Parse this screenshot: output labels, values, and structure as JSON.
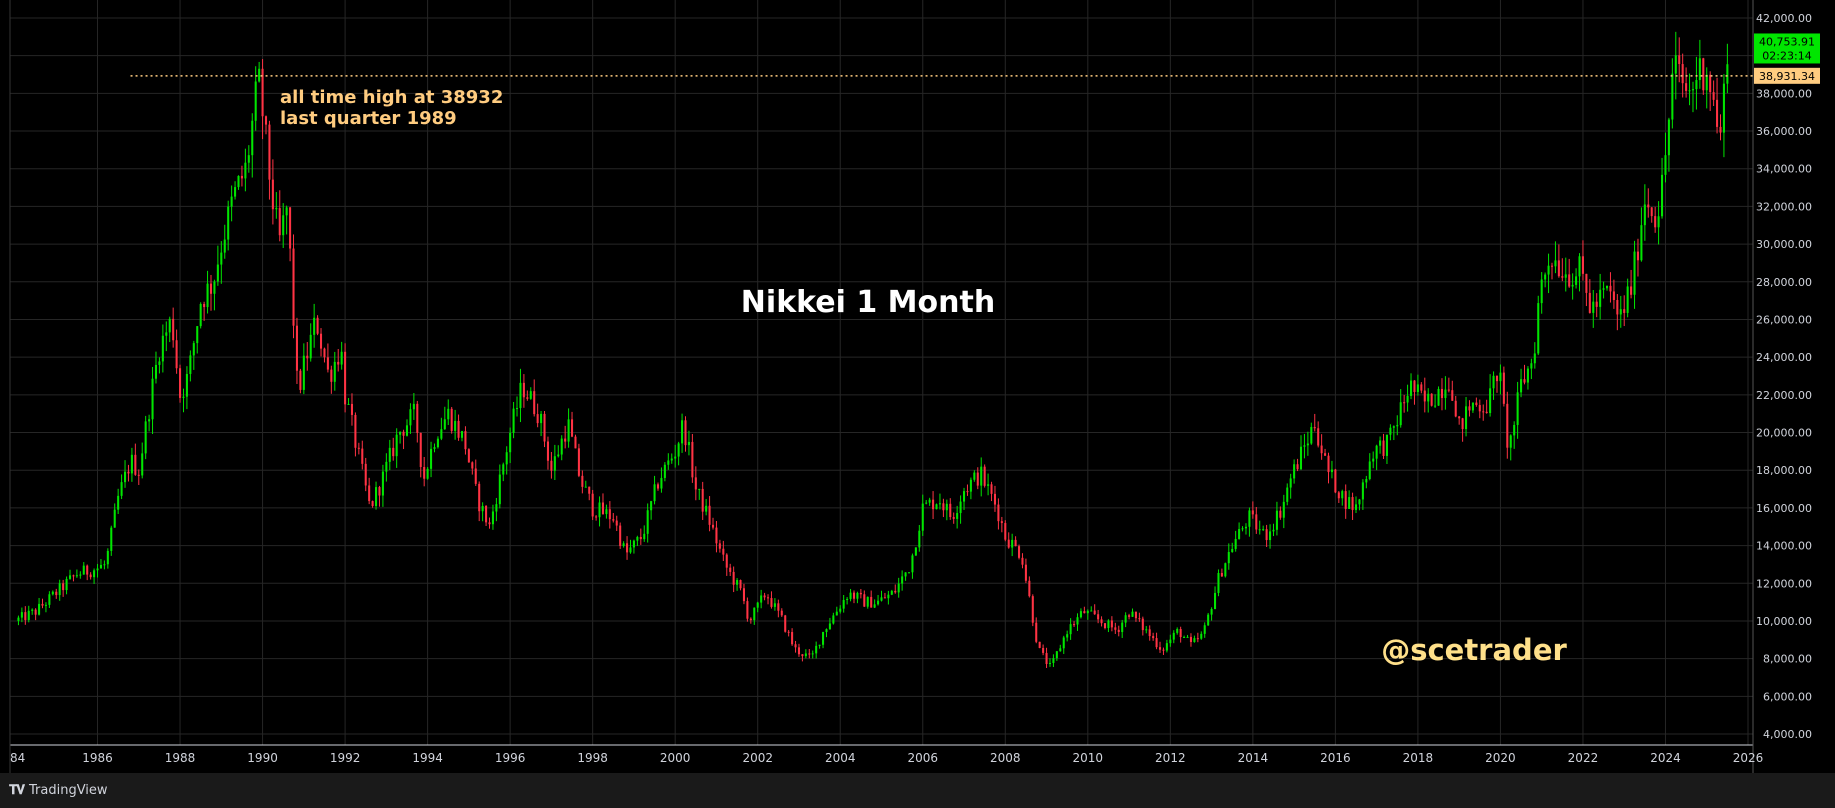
{
  "chart_data": {
    "type": "candlestick",
    "title": "Nikkei 1 Month",
    "watermark": "@scetrader",
    "annotation": [
      "all time high at 38932",
      "last quarter 1989"
    ],
    "x_range": [
      1984,
      2026
    ],
    "x_ticks": [
      "84",
      "1986",
      "1988",
      "1990",
      "1992",
      "1994",
      "1996",
      "1998",
      "2000",
      "2002",
      "2004",
      "2006",
      "2008",
      "2010",
      "2012",
      "2014",
      "2016",
      "2018",
      "2020",
      "2022",
      "2024",
      "2026"
    ],
    "y_range": [
      4000,
      42000
    ],
    "y_ticks": [
      "42,000.00",
      "40,000.00",
      "38,000.00",
      "36,000.00",
      "34,000.00",
      "32,000.00",
      "30,000.00",
      "28,000.00",
      "26,000.00",
      "24,000.00",
      "22,000.00",
      "20,000.00",
      "18,000.00",
      "16,000.00",
      "14,000.00",
      "12,000.00",
      "10,000.00",
      "8,000.00",
      "6,000.00",
      "4,000.00"
    ],
    "reference_line": {
      "value": 38931.34,
      "label": "38,931.34",
      "style": "dotted",
      "color": "#ffcc80"
    },
    "last_price": {
      "value": 40753.91,
      "label": "40,753.91",
      "countdown": "02:23:14",
      "color": "#00e600"
    },
    "grid": true,
    "colors": {
      "up": "#00e600",
      "down": "#ff3344",
      "text": "#d1d4dc",
      "annotation": "#ffcc80",
      "background": "#000000"
    },
    "series_path": [
      [
        1984.0,
        10000
      ],
      [
        1984.5,
        10500
      ],
      [
        1985.0,
        11500
      ],
      [
        1985.5,
        12500
      ],
      [
        1986.0,
        12800
      ],
      [
        1986.2,
        13000
      ],
      [
        1986.5,
        16500
      ],
      [
        1986.8,
        18500
      ],
      [
        1987.0,
        18000
      ],
      [
        1987.3,
        22000
      ],
      [
        1987.5,
        24500
      ],
      [
        1987.8,
        26000
      ],
      [
        1988.0,
        22000
      ],
      [
        1988.2,
        23000
      ],
      [
        1988.5,
        27000
      ],
      [
        1988.8,
        28000
      ],
      [
        1989.0,
        30000
      ],
      [
        1989.3,
        32500
      ],
      [
        1989.6,
        34000
      ],
      [
        1989.9,
        38700
      ],
      [
        1990.0,
        37000
      ],
      [
        1990.2,
        33000
      ],
      [
        1990.4,
        30000
      ],
      [
        1990.6,
        32000
      ],
      [
        1990.75,
        26000
      ],
      [
        1990.85,
        22000
      ],
      [
        1991.0,
        23500
      ],
      [
        1991.3,
        26000
      ],
      [
        1991.6,
        23000
      ],
      [
        1991.9,
        24500
      ],
      [
        1992.0,
        22000
      ],
      [
        1992.3,
        19000
      ],
      [
        1992.6,
        16000
      ],
      [
        1992.9,
        17500
      ],
      [
        1993.3,
        20000
      ],
      [
        1993.7,
        21000
      ],
      [
        1993.9,
        17500
      ],
      [
        1994.2,
        20000
      ],
      [
        1994.5,
        21000
      ],
      [
        1994.9,
        19500
      ],
      [
        1995.2,
        16500
      ],
      [
        1995.5,
        15000
      ],
      [
        1995.8,
        18000
      ],
      [
        1996.0,
        20000
      ],
      [
        1996.3,
        22500
      ],
      [
        1996.7,
        21000
      ],
      [
        1997.0,
        18000
      ],
      [
        1997.4,
        20500
      ],
      [
        1997.7,
        17500
      ],
      [
        1998.0,
        16000
      ],
      [
        1998.5,
        15500
      ],
      [
        1998.8,
        13500
      ],
      [
        1999.2,
        14500
      ],
      [
        1999.6,
        17500
      ],
      [
        2000.0,
        19000
      ],
      [
        2000.2,
        20500
      ],
      [
        2000.5,
        17000
      ],
      [
        2000.8,
        15500
      ],
      [
        2001.2,
        13000
      ],
      [
        2001.6,
        11500
      ],
      [
        2001.8,
        10000
      ],
      [
        2002.2,
        11500
      ],
      [
        2002.6,
        10000
      ],
      [
        2002.9,
        8500
      ],
      [
        2003.3,
        8000
      ],
      [
        2003.6,
        9500
      ],
      [
        2003.9,
        10500
      ],
      [
        2004.2,
        11500
      ],
      [
        2004.6,
        11000
      ],
      [
        2004.9,
        11000
      ],
      [
        2005.3,
        11500
      ],
      [
        2005.7,
        13000
      ],
      [
        2006.0,
        16000
      ],
      [
        2006.4,
        16500
      ],
      [
        2006.7,
        15500
      ],
      [
        2007.0,
        17000
      ],
      [
        2007.4,
        17800
      ],
      [
        2007.8,
        16000
      ],
      [
        2008.0,
        14500
      ],
      [
        2008.4,
        13500
      ],
      [
        2008.8,
        8500
      ],
      [
        2009.1,
        7500
      ],
      [
        2009.5,
        9500
      ],
      [
        2009.9,
        10500
      ],
      [
        2010.3,
        10000
      ],
      [
        2010.7,
        9500
      ],
      [
        2011.0,
        10500
      ],
      [
        2011.4,
        9500
      ],
      [
        2011.8,
        8500
      ],
      [
        2012.2,
        9500
      ],
      [
        2012.5,
        8700
      ],
      [
        2012.8,
        9300
      ],
      [
        2013.2,
        12500
      ],
      [
        2013.5,
        14000
      ],
      [
        2013.9,
        15500
      ],
      [
        2014.3,
        14500
      ],
      [
        2014.7,
        16000
      ],
      [
        2014.9,
        17500
      ],
      [
        2015.3,
        19500
      ],
      [
        2015.5,
        20500
      ],
      [
        2015.8,
        18000
      ],
      [
        2016.2,
        16500
      ],
      [
        2016.5,
        16000
      ],
      [
        2016.9,
        19000
      ],
      [
        2017.3,
        19500
      ],
      [
        2017.8,
        22500
      ],
      [
        2018.2,
        21500
      ],
      [
        2018.8,
        23000
      ],
      [
        2018.95,
        20000
      ],
      [
        2019.3,
        21500
      ],
      [
        2019.7,
        21500
      ],
      [
        2019.95,
        23500
      ],
      [
        2020.2,
        19000
      ],
      [
        2020.5,
        22500
      ],
      [
        2020.8,
        24000
      ],
      [
        2020.95,
        27500
      ],
      [
        2021.2,
        29500
      ],
      [
        2021.6,
        28500
      ],
      [
        2021.95,
        28500
      ],
      [
        2022.2,
        26500
      ],
      [
        2022.6,
        27500
      ],
      [
        2022.9,
        26000
      ],
      [
        2023.2,
        28000
      ],
      [
        2023.5,
        32500
      ],
      [
        2023.8,
        31500
      ],
      [
        2023.95,
        33500
      ],
      [
        2024.2,
        39500
      ],
      [
        2024.4,
        38500
      ],
      [
        2024.6,
        38000
      ],
      [
        2024.75,
        39000
      ],
      [
        2025.0,
        39500
      ],
      [
        2025.2,
        37000
      ],
      [
        2025.35,
        35500
      ],
      [
        2025.5,
        40753.91
      ]
    ]
  },
  "footer": {
    "brand": "TradingView"
  }
}
